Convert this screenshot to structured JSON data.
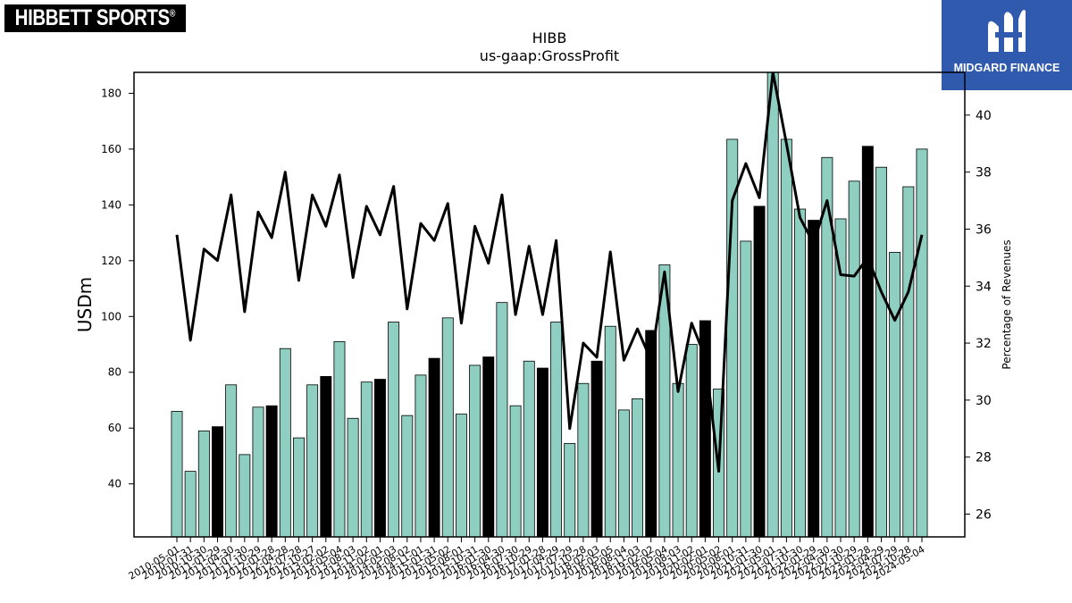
{
  "logos": {
    "left_brand_text": "HIBBETT SPORTS",
    "left_brand_mark": "®",
    "right_brand_text": "MIDGARD FINANCE",
    "right_brand_icon": "midgard-m-logo-icon",
    "right_brand_bg": "#2f5aae"
  },
  "chart_data": {
    "type": "bar",
    "title": "HIBB",
    "subtitle": "us-gaap:GrossProfit",
    "ylabel": "USDm",
    "y2label": "Percentage of Revenues",
    "ylim": [
      21,
      187.5
    ],
    "y2lim": [
      25.2,
      41.5
    ],
    "yticks": [
      40,
      60,
      80,
      100,
      120,
      140,
      160,
      180
    ],
    "y2ticks": [
      26,
      28,
      30,
      32,
      34,
      36,
      38,
      40
    ],
    "grid": false,
    "legend": "none",
    "colors": {
      "bar": "#8ecfc2",
      "bar_highlight": "#000000",
      "line": "#000000"
    },
    "categories": [
      "2010-05-01",
      "2010-07-31",
      "2010-10-30",
      "2011-01-29",
      "2011-04-30",
      "2011-07-30",
      "2011-10-29",
      "2012-01-28",
      "2012-04-28",
      "2012-07-28",
      "2012-10-27",
      "2013-02-02",
      "2013-05-04",
      "2013-08-03",
      "2013-11-02",
      "2014-02-01",
      "2014-05-03",
      "2014-08-02",
      "2014-11-01",
      "2015-01-31",
      "2015-05-02",
      "2015-08-01",
      "2015-10-31",
      "2016-01-30",
      "2016-04-30",
      "2016-07-30",
      "2016-10-29",
      "2017-01-28",
      "2017-04-29",
      "2017-07-29",
      "2017-10-28",
      "2018-02-03",
      "2018-05-05",
      "2018-08-04",
      "2018-11-03",
      "2019-02-02",
      "2019-05-04",
      "2019-08-03",
      "2019-11-02",
      "2020-02-01",
      "2020-05-02",
      "2020-08-01",
      "2020-10-31",
      "2021-01-30",
      "2021-05-01",
      "2021-07-31",
      "2021-10-30",
      "2022-01-29",
      "2022-04-30",
      "2022-07-30",
      "2022-10-29",
      "2023-01-28",
      "2023-04-29",
      "2023-07-29",
      "2023-10-28",
      "2024-05-04"
    ],
    "values": [
      66,
      44.5,
      59,
      60.5,
      75.5,
      50.5,
      67.5,
      68,
      88.5,
      56.5,
      75.5,
      78.5,
      91,
      63.5,
      76.5,
      77.5,
      98,
      64.5,
      79,
      85,
      99.5,
      65,
      82.5,
      85.5,
      105,
      68,
      84,
      81.5,
      98,
      54.5,
      76,
      84,
      96.5,
      66.5,
      70.5,
      95,
      118.5,
      76,
      90,
      98.5,
      74,
      163.5,
      127,
      139.5,
      189,
      163.5,
      138.5,
      134.5,
      157,
      135,
      148.5,
      161,
      153.5,
      123,
      146.5,
      160
    ],
    "highlight": [
      false,
      false,
      false,
      true,
      false,
      false,
      false,
      true,
      false,
      false,
      false,
      true,
      false,
      false,
      false,
      true,
      false,
      false,
      false,
      true,
      false,
      false,
      false,
      true,
      false,
      false,
      false,
      true,
      false,
      false,
      false,
      true,
      false,
      false,
      false,
      true,
      false,
      false,
      false,
      true,
      false,
      false,
      false,
      true,
      false,
      false,
      false,
      true,
      false,
      false,
      false,
      true,
      false,
      false,
      false,
      false
    ],
    "line_series": {
      "axis": "right",
      "values": [
        35.8,
        32.1,
        35.3,
        34.9,
        37.2,
        33.1,
        36.6,
        35.7,
        38,
        34.2,
        37.2,
        36.1,
        37.9,
        34.3,
        36.8,
        35.8,
        37.5,
        33.2,
        36.2,
        35.6,
        36.9,
        32.7,
        36.1,
        34.8,
        37.2,
        33,
        35.4,
        33,
        35.6,
        29,
        32,
        31.5,
        35.2,
        31.4,
        32.5,
        31.4,
        34.5,
        30.3,
        32.7,
        31.5,
        27.5,
        37,
        38.3,
        37.1,
        41.5,
        39,
        36.4,
        35.5,
        37,
        34.4,
        34.35,
        35,
        33.8,
        32.8,
        33.8,
        35.8
      ]
    }
  }
}
